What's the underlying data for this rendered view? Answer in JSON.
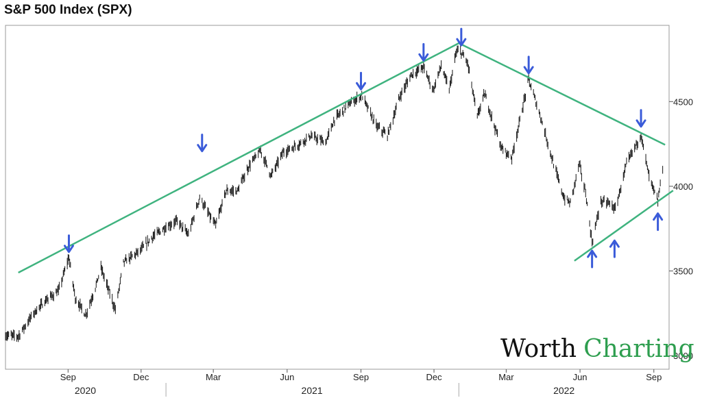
{
  "chart_data": {
    "type": "line",
    "title": "S&P 500 Index (SPX)",
    "xlabel": "",
    "ylabel": "",
    "x_range": [
      "2020-06-15",
      "2022-09-20"
    ],
    "ylim": [
      2920,
      4950
    ],
    "y_ticks": [
      3000,
      3500,
      4000,
      4500
    ],
    "month_ticks": [
      {
        "label": "Sep",
        "date": "2020-09-01"
      },
      {
        "label": "Dec",
        "date": "2020-12-01"
      },
      {
        "label": "Mar",
        "date": "2021-03-01"
      },
      {
        "label": "Jun",
        "date": "2021-06-01"
      },
      {
        "label": "Sep",
        "date": "2021-09-01"
      },
      {
        "label": "Dec",
        "date": "2021-12-01"
      },
      {
        "label": "Mar",
        "date": "2022-03-01"
      },
      {
        "label": "Jun",
        "date": "2022-06-01"
      },
      {
        "label": "Sep",
        "date": "2022-09-01"
      }
    ],
    "years": [
      {
        "label": "2020",
        "from": "2020-06-15",
        "to": "2020-12-31"
      },
      {
        "label": "2021",
        "from": "2021-01-01",
        "to": "2021-12-31"
      },
      {
        "label": "2022",
        "from": "2022-01-01",
        "to": "2022-09-20"
      }
    ],
    "grid": false,
    "series": [
      {
        "x": [
          "2020-06-15",
          "2020-07-01",
          "2020-07-20",
          "2020-08-05",
          "2020-08-20",
          "2020-09-02",
          "2020-09-10",
          "2020-09-23",
          "2020-10-05",
          "2020-10-12",
          "2020-10-30",
          "2020-11-09",
          "2020-11-30",
          "2020-12-15",
          "2020-12-31",
          "2021-01-15",
          "2021-01-29",
          "2021-02-12",
          "2021-02-26",
          "2021-03-04",
          "2021-03-17",
          "2021-03-31",
          "2021-04-15",
          "2021-04-29",
          "2021-05-12",
          "2021-05-27",
          "2021-06-15",
          "2021-06-30",
          "2021-07-19",
          "2021-07-30",
          "2021-08-16",
          "2021-09-02",
          "2021-09-20",
          "2021-10-04",
          "2021-10-20",
          "2021-11-03",
          "2021-11-18",
          "2021-11-30",
          "2021-12-10",
          "2021-12-20",
          "2021-12-29",
          "2022-01-03",
          "2022-01-12",
          "2022-01-24",
          "2022-02-02",
          "2022-02-23",
          "2022-03-08",
          "2022-03-29",
          "2022-04-14",
          "2022-04-29",
          "2022-05-12",
          "2022-05-20",
          "2022-05-31",
          "2022-06-08",
          "2022-06-16",
          "2022-06-27",
          "2022-07-08",
          "2022-07-15",
          "2022-07-29",
          "2022-08-16",
          "2022-08-26",
          "2022-09-06",
          "2022-09-12"
        ],
        "y": [
          3120,
          3115,
          3250,
          3330,
          3380,
          3580,
          3340,
          3240,
          3400,
          3520,
          3270,
          3550,
          3620,
          3700,
          3756,
          3795,
          3714,
          3934,
          3811,
          3768,
          3974,
          3972,
          4124,
          4211,
          4063,
          4200,
          4246,
          4297,
          4258,
          4395,
          4480,
          4537,
          4357,
          4300,
          4536,
          4660,
          4704,
          4567,
          4712,
          4568,
          4793,
          4796,
          4726,
          4410,
          4546,
          4225,
          4170,
          4631,
          4392,
          4131,
          3930,
          3901,
          4132,
          3960,
          3667,
          3911,
          3899,
          3863,
          4130,
          4305,
          4057,
          3908,
          4110
        ]
      }
    ],
    "trendlines": [
      {
        "from": {
          "x": "2020-07-01",
          "y": 3490
        },
        "to": {
          "x": "2022-01-01",
          "y": 4845
        }
      },
      {
        "from": {
          "x": "2022-01-01",
          "y": 4845
        },
        "to": {
          "x": "2022-09-15",
          "y": 4245
        }
      },
      {
        "from": {
          "x": "2022-05-25",
          "y": 3560
        },
        "to": {
          "x": "2022-09-25",
          "y": 3975
        }
      }
    ],
    "annotations": {
      "down_arrows": [
        {
          "x": "2020-09-02",
          "y": 3580
        },
        {
          "x": "2021-02-15",
          "y": 4175
        },
        {
          "x": "2021-09-01",
          "y": 4540
        },
        {
          "x": "2021-11-18",
          "y": 4710
        },
        {
          "x": "2022-01-04",
          "y": 4800
        },
        {
          "x": "2022-03-29",
          "y": 4635
        },
        {
          "x": "2022-08-16",
          "y": 4320
        }
      ],
      "up_arrows": [
        {
          "x": "2022-06-16",
          "y": 3660
        },
        {
          "x": "2022-07-14",
          "y": 3720
        },
        {
          "x": "2022-09-06",
          "y": 3880
        }
      ]
    },
    "colors": {
      "trendline": "#3fb37f",
      "arrow": "#3a5bd9",
      "price": "#111111"
    }
  },
  "watermark": {
    "part1": "Worth",
    "part2": "Charting"
  }
}
